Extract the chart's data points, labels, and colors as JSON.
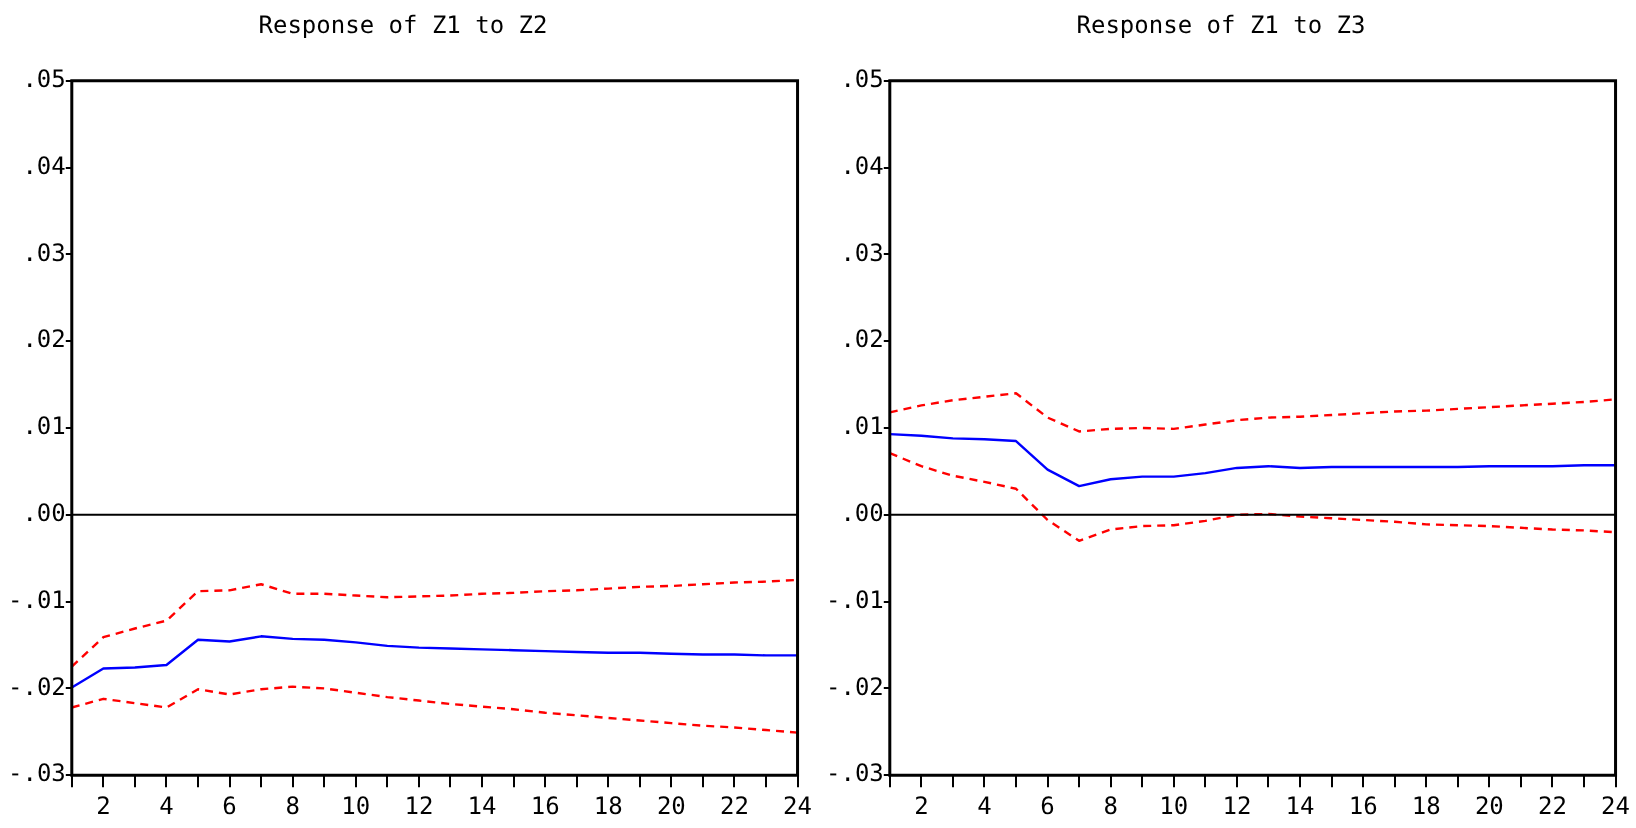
{
  "chart_data": [
    {
      "type": "line",
      "title": "Response of Z1 to Z2",
      "x": [
        1,
        2,
        3,
        4,
        5,
        6,
        7,
        8,
        9,
        10,
        11,
        12,
        13,
        14,
        15,
        16,
        17,
        18,
        19,
        20,
        21,
        22,
        23,
        24
      ],
      "xlim": [
        1,
        24
      ],
      "xticks": [
        {
          "value": 1,
          "label": null
        },
        2,
        {
          "value": 3,
          "label": null
        },
        4,
        {
          "value": 5,
          "label": null
        },
        6,
        {
          "value": 7,
          "label": null
        },
        8,
        {
          "value": 9,
          "label": null
        },
        10,
        {
          "value": 11,
          "label": null
        },
        12,
        {
          "value": 13,
          "label": null
        },
        14,
        {
          "value": 15,
          "label": null
        },
        16,
        {
          "value": 17,
          "label": null
        },
        18,
        {
          "value": 19,
          "label": null
        },
        20,
        {
          "value": 21,
          "label": null
        },
        22,
        {
          "value": 23,
          "label": null
        },
        24
      ],
      "ylim": [
        -0.03,
        0.05
      ],
      "yticks": [
        {
          "value": -0.03,
          "label": "-.03"
        },
        {
          "value": -0.02,
          "label": "-.02"
        },
        {
          "value": -0.01,
          "label": "-.01"
        },
        {
          "value": 0,
          "label": ".00"
        },
        {
          "value": 0.01,
          "label": ".01"
        },
        {
          "value": 0.02,
          "label": ".02"
        },
        {
          "value": 0.03,
          "label": ".03"
        },
        {
          "value": 0.04,
          "label": ".04"
        },
        {
          "value": 0.05,
          "label": ".05"
        }
      ],
      "ref_lines": [
        {
          "axis": "y",
          "value": 0,
          "color": "#000000"
        }
      ],
      "series": [
        {
          "color": "#0000ff",
          "line_style": "solid",
          "values": [
            -0.0199,
            -0.0177,
            -0.0176,
            -0.0173,
            -0.0144,
            -0.0146,
            -0.014,
            -0.0143,
            -0.0144,
            -0.0147,
            -0.0151,
            -0.0153,
            -0.0154,
            -0.0155,
            -0.0156,
            -0.0157,
            -0.0158,
            -0.0159,
            -0.0159,
            -0.016,
            -0.0161,
            -0.0161,
            -0.0162,
            -0.0162
          ]
        },
        {
          "color": "#ff0000",
          "line_style": "dashed",
          "values": [
            -0.0175,
            -0.0141,
            -0.0131,
            -0.0122,
            -0.0088,
            -0.0087,
            -0.008,
            -0.0091,
            -0.0091,
            -0.0093,
            -0.0095,
            -0.0094,
            -0.0093,
            -0.0091,
            -0.009,
            -0.0088,
            -0.0087,
            -0.0085,
            -0.0083,
            -0.0082,
            -0.008,
            -0.0078,
            -0.0077,
            -0.0075
          ]
        },
        {
          "color": "#ff0000",
          "line_style": "dashed",
          "values": [
            -0.0222,
            -0.0212,
            -0.0217,
            -0.0222,
            -0.0201,
            -0.0207,
            -0.0201,
            -0.0198,
            -0.02,
            -0.0205,
            -0.021,
            -0.0214,
            -0.0218,
            -0.0221,
            -0.0224,
            -0.0228,
            -0.0231,
            -0.0234,
            -0.0237,
            -0.024,
            -0.0243,
            -0.0245,
            -0.0248,
            -0.0251
          ]
        }
      ]
    },
    {
      "type": "line",
      "title": "Response of Z1 to Z3",
      "x": [
        1,
        2,
        3,
        4,
        5,
        6,
        7,
        8,
        9,
        10,
        11,
        12,
        13,
        14,
        15,
        16,
        17,
        18,
        19,
        20,
        21,
        22,
        23,
        24
      ],
      "xlim": [
        1,
        24
      ],
      "xticks": [
        {
          "value": 1,
          "label": null
        },
        2,
        {
          "value": 3,
          "label": null
        },
        4,
        {
          "value": 5,
          "label": null
        },
        6,
        {
          "value": 7,
          "label": null
        },
        8,
        {
          "value": 9,
          "label": null
        },
        10,
        {
          "value": 11,
          "label": null
        },
        12,
        {
          "value": 13,
          "label": null
        },
        14,
        {
          "value": 15,
          "label": null
        },
        16,
        {
          "value": 17,
          "label": null
        },
        18,
        {
          "value": 19,
          "label": null
        },
        20,
        {
          "value": 21,
          "label": null
        },
        22,
        {
          "value": 23,
          "label": null
        },
        24
      ],
      "ylim": [
        -0.03,
        0.05
      ],
      "yticks": [
        {
          "value": -0.03,
          "label": "-.03"
        },
        {
          "value": -0.02,
          "label": "-.02"
        },
        {
          "value": -0.01,
          "label": "-.01"
        },
        {
          "value": 0,
          "label": ".00"
        },
        {
          "value": 0.01,
          "label": ".01"
        },
        {
          "value": 0.02,
          "label": ".02"
        },
        {
          "value": 0.03,
          "label": ".03"
        },
        {
          "value": 0.04,
          "label": ".04"
        },
        {
          "value": 0.05,
          "label": ".05"
        }
      ],
      "ref_lines": [
        {
          "axis": "y",
          "value": 0,
          "color": "#000000"
        }
      ],
      "series": [
        {
          "color": "#0000ff",
          "line_style": "solid",
          "values": [
            0.0093,
            0.0091,
            0.0088,
            0.0087,
            0.0085,
            0.0052,
            0.0033,
            0.0041,
            0.0044,
            0.0044,
            0.0048,
            0.0054,
            0.0056,
            0.0054,
            0.0055,
            0.0055,
            0.0055,
            0.0055,
            0.0055,
            0.0056,
            0.0056,
            0.0056,
            0.0057,
            0.0057
          ]
        },
        {
          "color": "#ff0000",
          "line_style": "dashed",
          "values": [
            0.0118,
            0.0126,
            0.0132,
            0.0136,
            0.014,
            0.0112,
            0.0096,
            0.0099,
            0.01,
            0.0099,
            0.0104,
            0.0109,
            0.0112,
            0.0113,
            0.0115,
            0.0117,
            0.0119,
            0.012,
            0.0122,
            0.0124,
            0.0126,
            0.0128,
            0.013,
            0.0133
          ]
        },
        {
          "color": "#ff0000",
          "line_style": "dashed",
          "values": [
            0.0071,
            0.0056,
            0.0045,
            0.0038,
            0.003,
            -0.0006,
            -0.003,
            -0.0017,
            -0.0013,
            -0.0012,
            -0.0007,
            0,
            0.0001,
            -0.0002,
            -0.0004,
            -0.0006,
            -0.0008,
            -0.0011,
            -0.0012,
            -0.0013,
            -0.0015,
            -0.0017,
            -0.0018,
            -0.002
          ]
        }
      ]
    }
  ]
}
